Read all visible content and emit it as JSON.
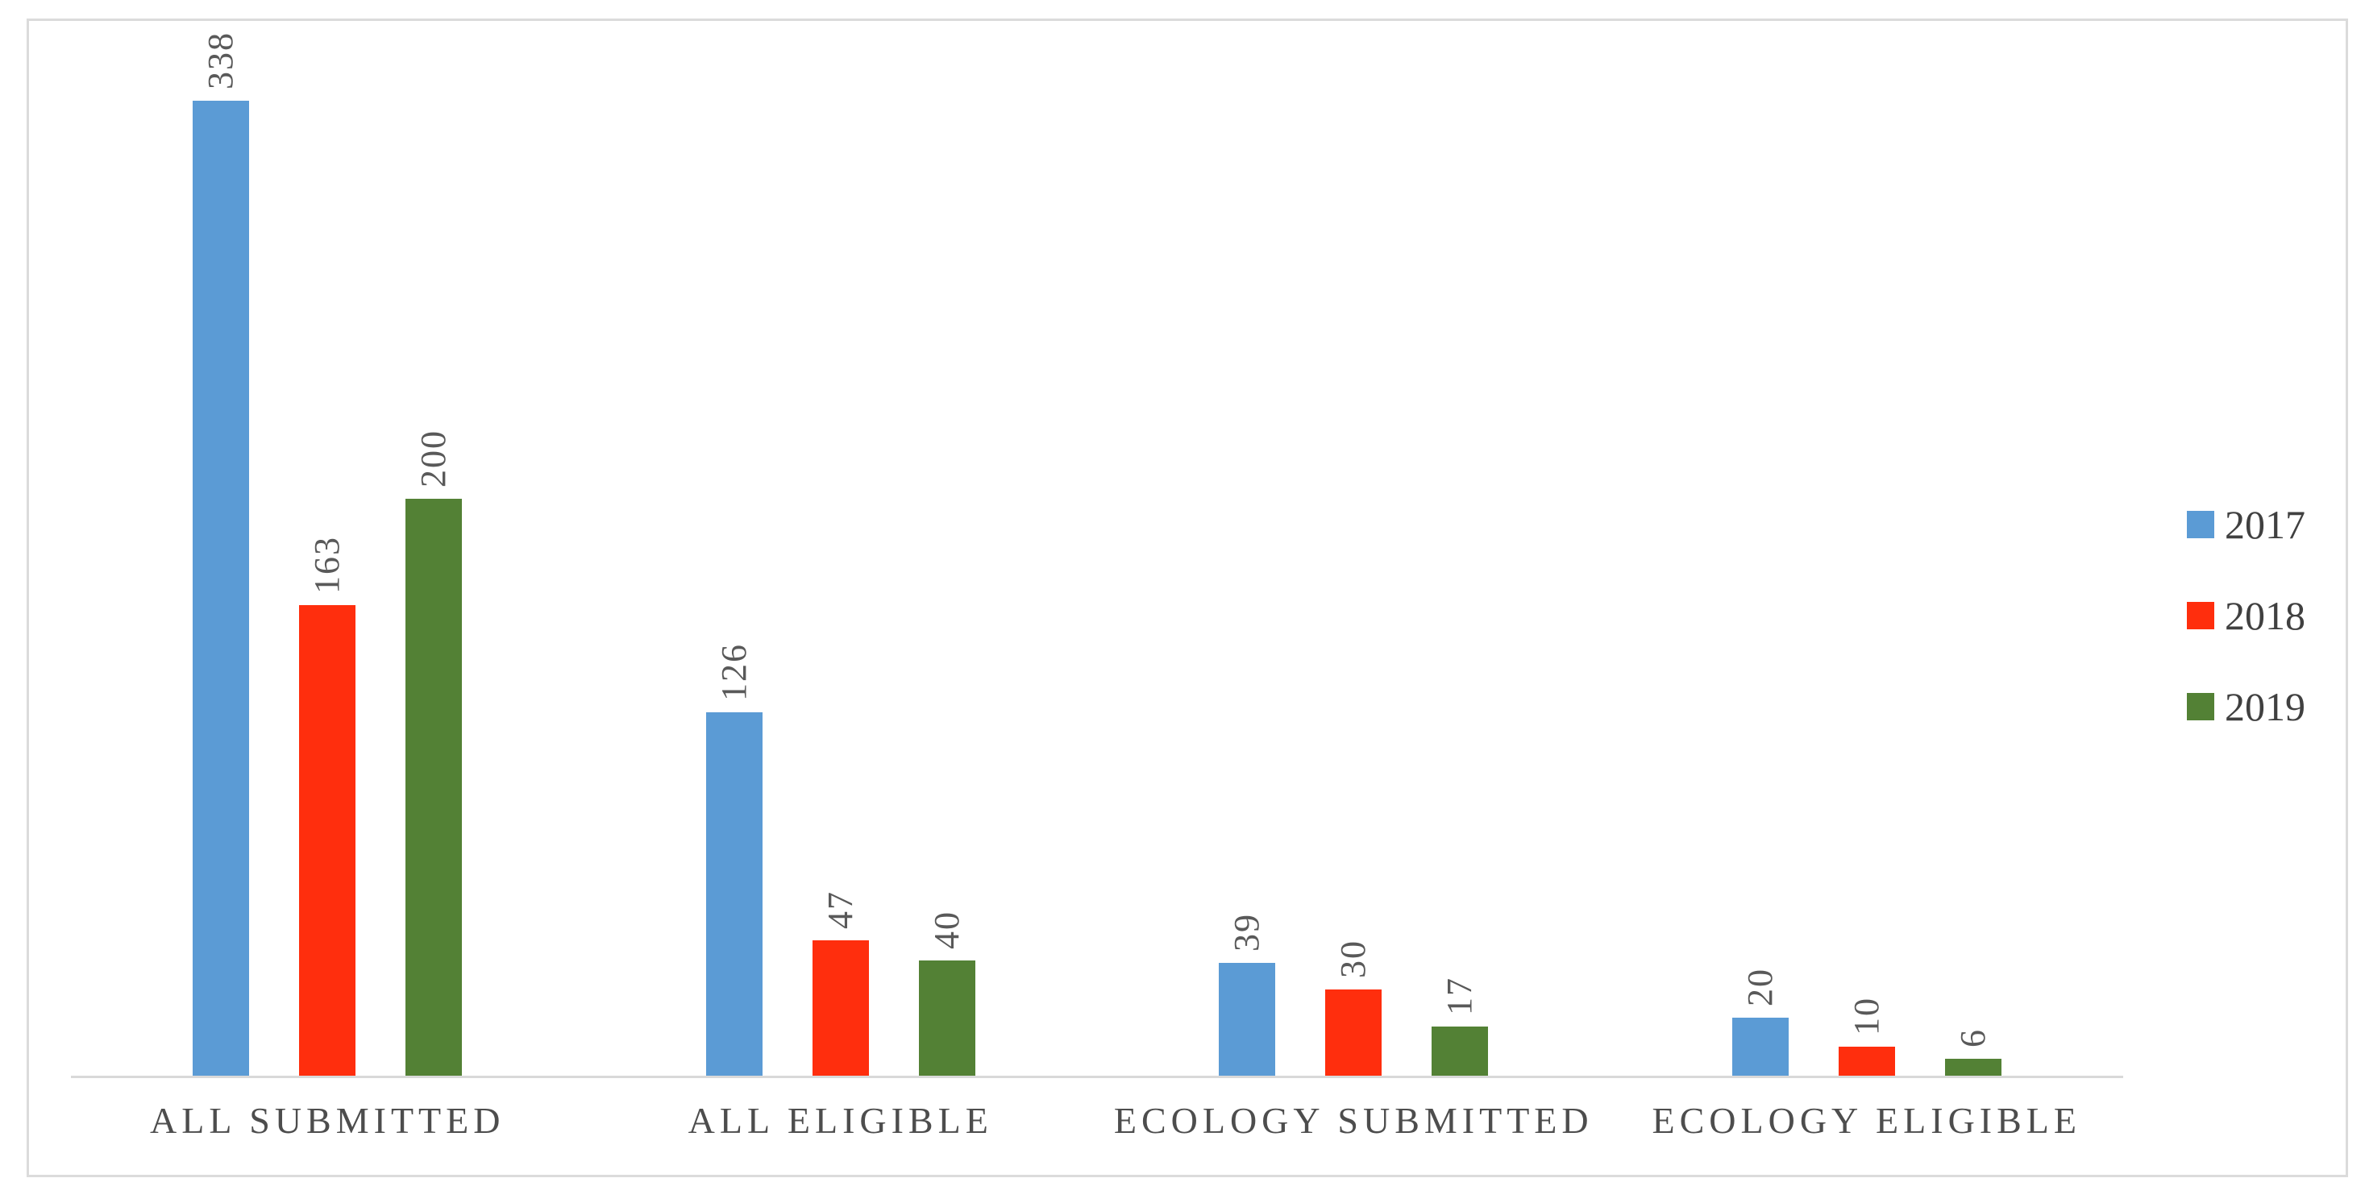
{
  "figure": {
    "background": "#FFFFFF",
    "border_color": "#DBDBDB"
  },
  "chart_data": {
    "type": "bar",
    "title": "",
    "xlabel": "",
    "ylabel": "",
    "categories": [
      "ALL SUBMITTED",
      "ALL ELIGIBLE",
      "ECOLOGY SUBMITTED",
      "ECOLOGY ELIGIBLE"
    ],
    "series": [
      {
        "name": "2017",
        "color": "#5B9BD5",
        "values": [
          338,
          126,
          39,
          20
        ]
      },
      {
        "name": "2018",
        "color": "#FF2E0D",
        "values": [
          163,
          47,
          30,
          10
        ]
      },
      {
        "name": "2019",
        "color": "#538135",
        "values": [
          200,
          40,
          17,
          6
        ]
      }
    ],
    "value_axis": {
      "min": 0,
      "max_value_shown": 338,
      "ticks_visible": false
    },
    "gridlines": false,
    "data_labels": "value-above-bar-rotated-90",
    "data_label_color": "#595959",
    "category_label_color": "#4D4D4D",
    "axis_line_color": "#D9D9D9",
    "legend_position": "right",
    "legend_text_color": "#404040"
  }
}
